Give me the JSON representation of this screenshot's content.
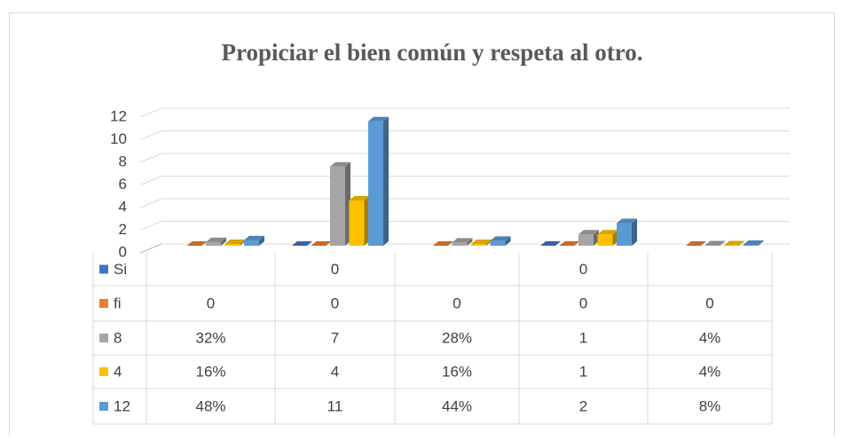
{
  "chart_data": {
    "type": "bar3d",
    "title": "Propiciar el bien común y respeta al otro.",
    "categories": [
      null,
      null,
      null,
      null,
      null
    ],
    "series": [
      {
        "name": "Si",
        "color": "#4472c4",
        "values": [
          null,
          0,
          null,
          0,
          null
        ]
      },
      {
        "name": "fi",
        "color": "#ed7d31",
        "values": [
          0,
          0,
          0,
          0,
          0
        ]
      },
      {
        "name": "8",
        "color": "#a5a5a5",
        "values": [
          0.32,
          7,
          0.28,
          1,
          0.04
        ],
        "value_labels": [
          "32%",
          null,
          "28%",
          null,
          "4%"
        ]
      },
      {
        "name": "4",
        "color": "#ffc000",
        "values": [
          0.16,
          4,
          0.16,
          1,
          0.04
        ],
        "value_labels": [
          "16%",
          null,
          "16%",
          null,
          "4%"
        ]
      },
      {
        "name": "12",
        "color": "#5b9bd5",
        "values": [
          0.48,
          11,
          0.44,
          2,
          0.08
        ],
        "value_labels": [
          "48%",
          null,
          "44%",
          null,
          "8%"
        ]
      }
    ],
    "ylim": [
      0,
      12
    ],
    "yticks": [
      0,
      2,
      4,
      6,
      8,
      10,
      12
    ],
    "grid": true,
    "data_table": true
  }
}
